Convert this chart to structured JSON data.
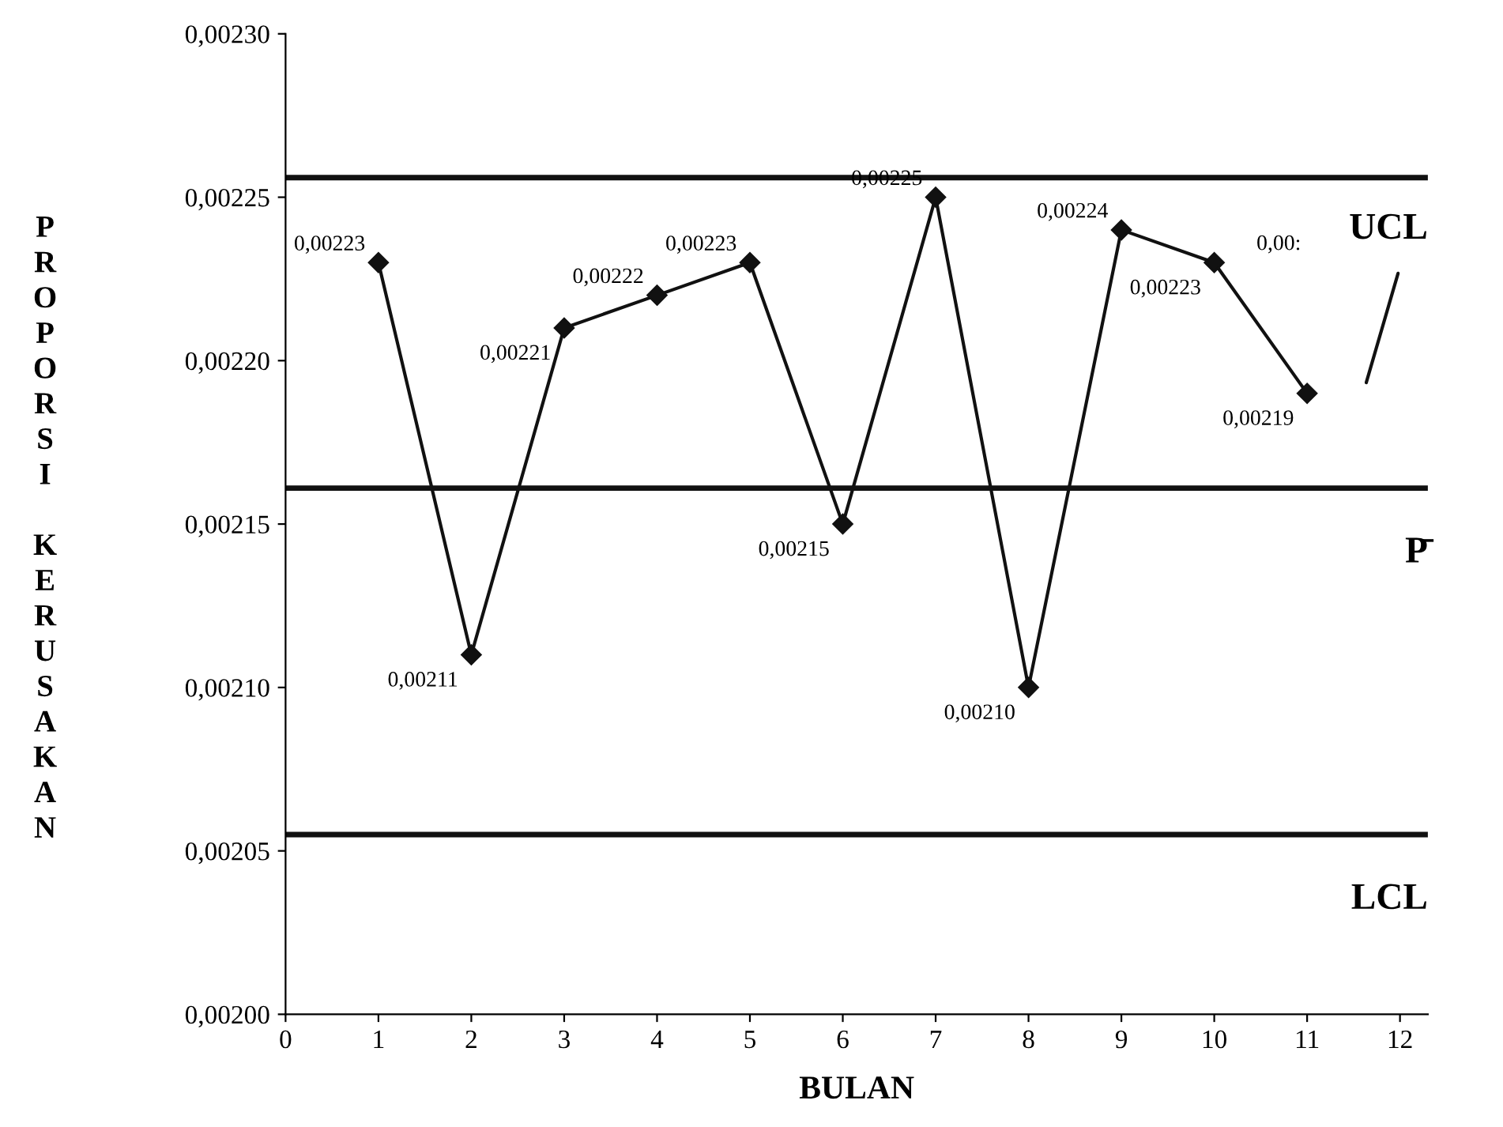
{
  "chart_data": {
    "type": "line",
    "xlabel": "BULAN",
    "ylabel": "PROPORSI KERUSAKAN",
    "x": [
      1,
      2,
      3,
      4,
      5,
      6,
      7,
      8,
      9,
      10,
      11
    ],
    "series": [
      {
        "color": "#111111",
        "values": [
          0.00223,
          0.00211,
          0.00221,
          0.00222,
          0.00223,
          0.00215,
          0.00225,
          0.0021,
          0.00224,
          0.00223,
          0.00219
        ],
        "value_labels": [
          "0,00223",
          "0,00211",
          "0,00221",
          "0,00222",
          "0,00223",
          "0,00215",
          "0,00225",
          "0,00210",
          "0,00224",
          "0,00223",
          "0,00219"
        ]
      }
    ],
    "marker": "diamond",
    "line_style": "solid",
    "grid": false,
    "legend": false,
    "xlim": [
      0,
      12.3
    ],
    "xticks": [
      0,
      1,
      2,
      3,
      4,
      5,
      6,
      7,
      8,
      9,
      10,
      11,
      12
    ],
    "ylim": [
      0.002,
      0.0023
    ],
    "yticks": [
      {
        "value": 0.002,
        "label": "0,00200"
      },
      {
        "value": 0.00205,
        "label": "0,00205"
      },
      {
        "value": 0.0021,
        "label": "0,00210"
      },
      {
        "value": 0.00215,
        "label": "0,00215"
      },
      {
        "value": 0.0022,
        "label": "0,00220"
      },
      {
        "value": 0.00225,
        "label": "0,00225"
      },
      {
        "value": 0.0023,
        "label": "0,00230"
      }
    ],
    "ref_lines": [
      {
        "axis": "y",
        "value": 0.002256,
        "label": "UCL",
        "color": "#111111"
      },
      {
        "axis": "y",
        "value": 0.002161,
        "label": "P̄",
        "color": "#111111"
      },
      {
        "axis": "y",
        "value": 0.002055,
        "label": "LCL",
        "color": "#111111"
      }
    ],
    "annotations": [
      "0,00:"
    ]
  }
}
